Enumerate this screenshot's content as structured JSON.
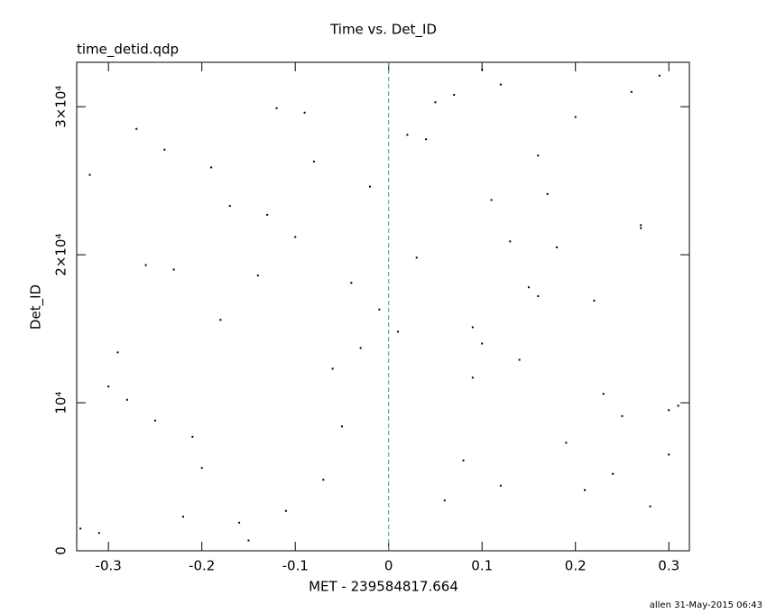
{
  "chart_data": {
    "type": "scatter",
    "title": "Time vs. Det_ID",
    "subtitle": "time_detid.qdp",
    "x_label": "MET - 239584817.664",
    "y_label": "Det_ID",
    "footer": "allen 31-May-2015 06:43",
    "color": "#000000",
    "xlim": [
      -0.334,
      0.322
    ],
    "ylim": [
      0,
      33000
    ],
    "xticks": [
      -0.3,
      -0.2,
      -0.1,
      0,
      0.1,
      0.2,
      0.3
    ],
    "yticks": [
      0,
      {
        "value": 10000,
        "label": "10⁴"
      },
      {
        "value": 20000,
        "label": "2×10⁴"
      },
      {
        "value": 30000,
        "label": "3×10⁴"
      }
    ],
    "reference_line": {
      "x": 0,
      "color": "#3a9ab0"
    },
    "x": [
      -0.31,
      0.12,
      -0.05,
      0.27,
      -0.18,
      0.04,
      0.21,
      -0.26,
      0.09,
      -0.12,
      0.3,
      -0.02,
      0.16,
      -0.22,
      0.07,
      -0.29,
      0.25,
      -0.08,
      0.18,
      -0.15,
      0.01,
      0.29,
      -0.2,
      0.11,
      -0.04,
      0.23,
      -0.27,
      0.06,
      -0.1,
      0.14,
      -0.32,
      0.19,
      -0.01,
      0.26,
      -0.16,
      0.03,
      0.31,
      -0.24,
      0.1,
      -0.07,
      0.2,
      -0.13,
      0.08,
      -0.3,
      0.15,
      -0.19,
      0.28,
      -0.03,
      0.13,
      -0.25,
      0.05,
      0.22,
      -0.11,
      0.17,
      -0.28,
      0.02,
      0.24,
      -0.14,
      0.1,
      -0.21,
      0.27,
      -0.06,
      0.16,
      -0.33,
      0.09,
      -0.17,
      0.3,
      -0.09,
      0.12,
      -0.23
    ],
    "values": [
      1200,
      31500,
      8400,
      22000,
      15600,
      27800,
      4100,
      19300,
      11700,
      29900,
      6500,
      24600,
      17200,
      2300,
      30800,
      13400,
      9100,
      26300,
      20500,
      700,
      14800,
      32100,
      5600,
      23700,
      18100,
      10600,
      28500,
      3400,
      21200,
      12900,
      25400,
      7300,
      16300,
      31000,
      1900,
      19800,
      9800,
      27100,
      14000,
      4800,
      29300,
      22700,
      6100,
      11100,
      17800,
      25900,
      3000,
      13700,
      20900,
      8800,
      30300,
      16900,
      2700,
      24100,
      10200,
      28100,
      5200,
      18600,
      32500,
      7700,
      21800,
      12300,
      26700,
      1500,
      15100,
      23300,
      9500,
      29600,
      4400,
      19000
    ]
  }
}
